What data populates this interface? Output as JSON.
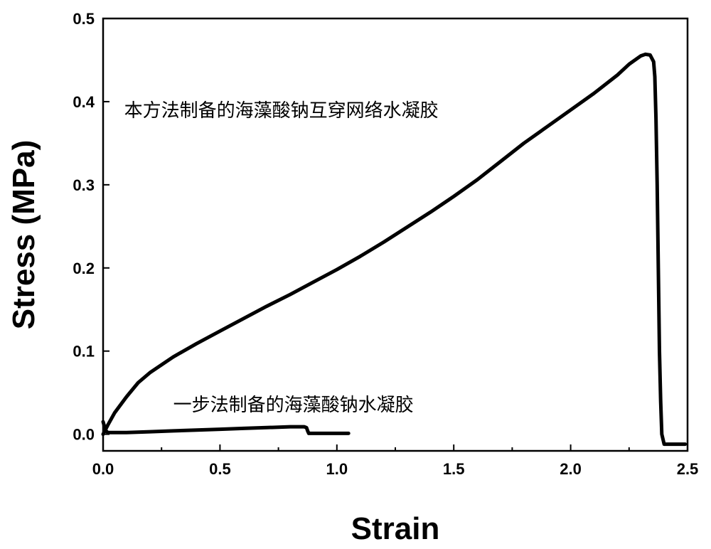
{
  "chart_data": {
    "type": "line",
    "title": "",
    "xlabel": "Strain",
    "ylabel": "Stress (MPa)",
    "xlim": [
      0,
      2.5
    ],
    "ylim": [
      -0.02,
      0.5
    ],
    "xticks": [
      0.0,
      0.5,
      1.0,
      1.5,
      2.0,
      2.5
    ],
    "xtick_labels": [
      "0.0",
      "0.5",
      "1.0",
      "1.5",
      "2.0",
      "2.5"
    ],
    "yticks": [
      0.0,
      0.1,
      0.2,
      0.3,
      0.4,
      0.5
    ],
    "ytick_labels": [
      "0.0",
      "0.1",
      "0.2",
      "0.3",
      "0.4",
      "0.5"
    ],
    "grid": false,
    "line_color": "#000000",
    "series": [
      {
        "x": [
          0.0,
          0.02,
          0.05,
          0.1,
          0.15,
          0.2,
          0.3,
          0.4,
          0.5,
          0.6,
          0.7,
          0.8,
          0.9,
          1.0,
          1.1,
          1.2,
          1.3,
          1.4,
          1.5,
          1.6,
          1.7,
          1.8,
          1.9,
          2.0,
          2.1,
          2.2,
          2.25,
          2.3,
          2.32,
          2.34,
          2.355,
          2.36,
          2.365,
          2.37,
          2.375,
          2.38,
          2.385,
          2.39,
          2.4,
          2.45,
          2.49
        ],
        "y": [
          0.0,
          0.011,
          0.026,
          0.045,
          0.062,
          0.074,
          0.093,
          0.109,
          0.124,
          0.139,
          0.154,
          0.168,
          0.183,
          0.198,
          0.214,
          0.231,
          0.249,
          0.267,
          0.286,
          0.306,
          0.328,
          0.35,
          0.37,
          0.39,
          0.41,
          0.432,
          0.445,
          0.455,
          0.457,
          0.456,
          0.448,
          0.43,
          0.38,
          0.3,
          0.2,
          0.1,
          0.04,
          0.0,
          -0.012,
          -0.012,
          -0.012
        ]
      },
      {
        "x": [
          0.0,
          0.01,
          0.02,
          0.05,
          0.1,
          0.2,
          0.3,
          0.4,
          0.5,
          0.6,
          0.7,
          0.8,
          0.86,
          0.87,
          0.875,
          0.88,
          0.9,
          0.95,
          1.0,
          1.05
        ],
        "y": [
          0.015,
          0.005,
          0.002,
          0.002,
          0.002,
          0.003,
          0.004,
          0.005,
          0.006,
          0.007,
          0.008,
          0.009,
          0.009,
          0.008,
          0.004,
          0.001,
          0.001,
          0.001,
          0.001,
          0.001
        ]
      }
    ],
    "annotations": [
      {
        "text": "本方法制备的海藻酸钠互穿网络水凝胶",
        "x": 0.09,
        "y": 0.382
      },
      {
        "text": "一步法制备的海藻酸钠水凝胶",
        "x": 0.3,
        "y": 0.028
      }
    ]
  }
}
